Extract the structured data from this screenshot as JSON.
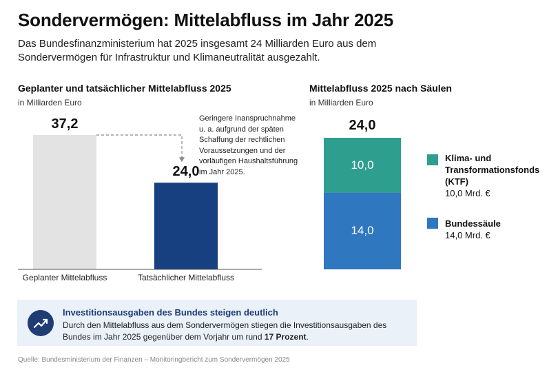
{
  "title": "Sondervermögen: Mittelabfluss im Jahr 2025",
  "subtitle": "Das Bundesfinanzministerium hat 2025 insgesamt 24 Milliarden Euro aus dem Sondervermögen für Infrastruktur und Klimaneutralität ausgezahlt.",
  "left_chart": {
    "section_title": "Geplanter und tatsächlicher Mittelabfluss 2025",
    "unit": "in Milliarden Euro",
    "annotation": "Geringere Inanspruchnahme u. a. aufgrund der späten Schaffung der rechtlichen Voraussetzungen und der vorläufigen Haushaltsführung im Jahr 2025."
  },
  "right_chart": {
    "section_title": "Mittelabfluss 2025 nach Säulen",
    "unit": "in Milliarden Euro",
    "total_label": "24,0"
  },
  "info": {
    "title": "Investitionsausgaben des Bundes steigen deutlich",
    "text_main": "Durch den Mittelabfluss aus dem Sondervermögen stiegen die Investitionsausgaben des Bundes im Jahr 2025 gegenüber dem Vorjahr um rund ",
    "text_bold": "17 Prozent",
    "text_end": ".",
    "icon": "trending-up-icon"
  },
  "source": "Quelle: Bundesministerium der Finanzen – Monitoringbericht zum Sondervermögen 2025",
  "chart_data": [
    {
      "type": "bar",
      "categories": [
        "Geplanter Mittelabfluss",
        "Tatsächlicher Mittelabfluss"
      ],
      "values": [
        37.2,
        24.0
      ],
      "value_labels": [
        "37,2",
        "24,0"
      ],
      "colors": [
        "#e3e3e3",
        "#16407f"
      ],
      "ylim": [
        0,
        37.2
      ]
    },
    {
      "type": "bar",
      "stacked": true,
      "categories": [
        "Mittelabfluss 2025"
      ],
      "series": [
        {
          "name": "Bundessäule",
          "values": [
            14.0
          ],
          "value_label": "14,0",
          "legend_value": "14,0 Mrd. €",
          "color": "#2f77bf"
        },
        {
          "name": "Klima- und Transformationsfonds (KTF)",
          "values": [
            10.0
          ],
          "value_label": "10,0",
          "legend_value": "10,0 Mrd. €",
          "color": "#2e9f8e"
        }
      ],
      "total": 24.0,
      "ylim": [
        0,
        24.0
      ]
    }
  ]
}
